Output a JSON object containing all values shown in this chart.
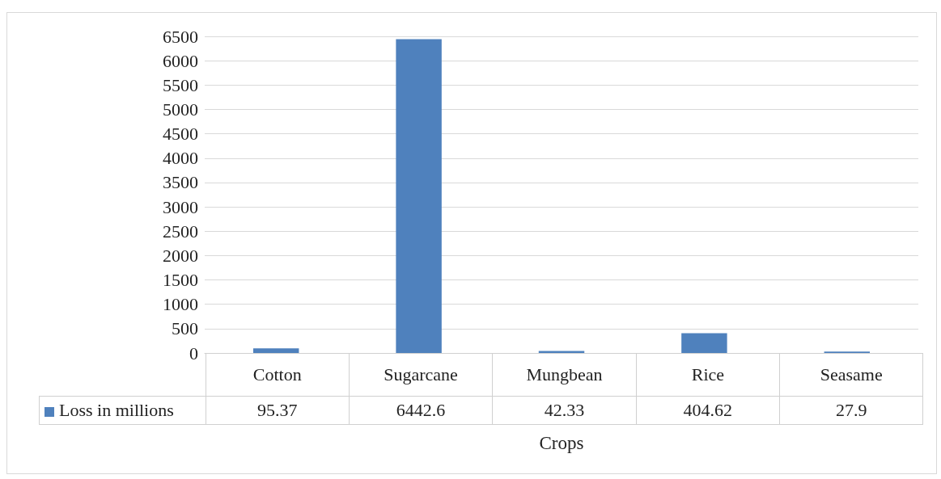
{
  "chart_data": {
    "type": "bar",
    "xlabel": "Crops",
    "categories": [
      "Cotton",
      "Sugarcane",
      "Mungbean",
      "Rice",
      "Seasame"
    ],
    "series": [
      {
        "name": "Loss in millions",
        "color": "#4f81bd",
        "values": [
          95.37,
          6442.6,
          42.33,
          404.62,
          27.9
        ]
      }
    ],
    "ylim": [
      0,
      6500
    ],
    "yticks": [
      0,
      500,
      1000,
      1500,
      2000,
      2500,
      3000,
      3500,
      4000,
      4500,
      5000,
      5500,
      6000,
      6500
    ],
    "grid": "y",
    "data_labels": true,
    "legend": "bottom left"
  }
}
